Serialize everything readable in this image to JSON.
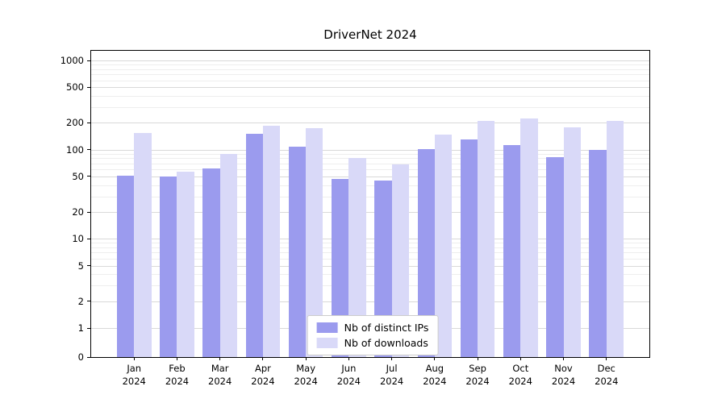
{
  "chart_data": {
    "type": "bar",
    "title": "DriverNet 2024",
    "yscale": "symlog",
    "grid": true,
    "legend_position": "lower center",
    "background": "#ffffff",
    "categories": [
      "Jan\n2024",
      "Feb\n2024",
      "Mar\n2024",
      "Apr\n2024",
      "May\n2024",
      "Jun\n2024",
      "Jul\n2024",
      "Aug\n2024",
      "Sep\n2024",
      "Oct\n2024",
      "Nov\n2024",
      "Dec\n2024"
    ],
    "yticks": [
      0,
      1,
      2,
      5,
      10,
      20,
      50,
      100,
      200,
      500,
      1000
    ],
    "ylim": [
      0,
      1300
    ],
    "series": [
      {
        "name": "Nb of distinct IPs",
        "color": "#9b9bee",
        "values": [
          51,
          50,
          62,
          150,
          108,
          47,
          45,
          102,
          130,
          113,
          83,
          100
        ]
      },
      {
        "name": "Nb of downloads",
        "color": "#d9d9f8",
        "values": [
          155,
          57,
          90,
          185,
          175,
          80,
          68,
          148,
          210,
          225,
          178,
          210
        ]
      }
    ],
    "grid_major_color": "#d9d9d9",
    "grid_minor_color": "#eeeeee"
  }
}
